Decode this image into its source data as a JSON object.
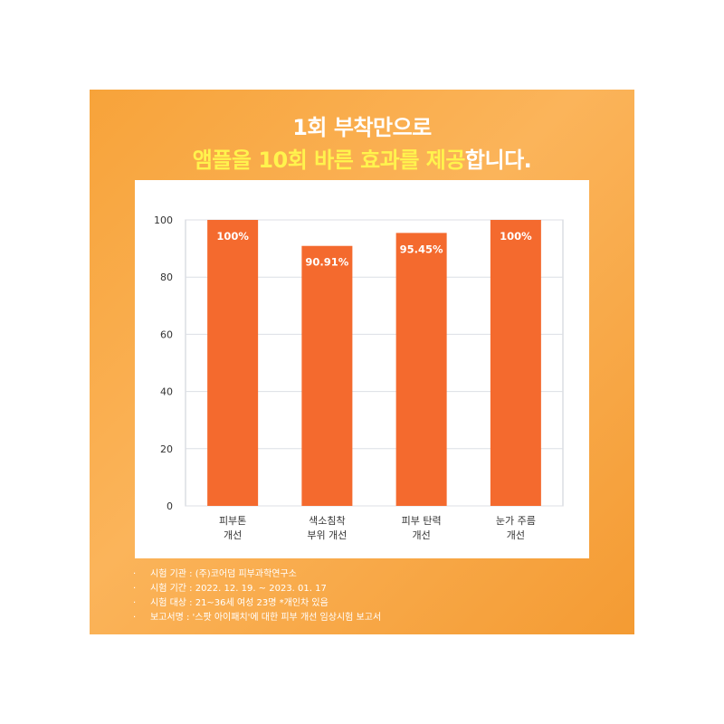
{
  "header": {
    "line1": "1회 부착만으로",
    "line2_highlight": "앰플을 10회 바른 효과를 제공",
    "line2_rest": "합니다."
  },
  "chart_data": {
    "type": "bar",
    "categories": [
      [
        "피부톤",
        "개선"
      ],
      [
        "색소침착",
        "부위 개선"
      ],
      [
        "피부 탄력",
        "개선"
      ],
      [
        "눈가 주름",
        "개선"
      ]
    ],
    "values": [
      100,
      90.91,
      95.45,
      100
    ],
    "data_labels": [
      "100%",
      "90.91%",
      "95.45%",
      "100%"
    ],
    "yticks": [
      0,
      20,
      40,
      60,
      80,
      100
    ],
    "ylim": [
      0,
      100
    ],
    "grid": true,
    "bar_color": "#f46a2e",
    "title": "",
    "xlabel": "",
    "ylabel": ""
  },
  "notes": [
    "시험 기관 : (주)코어덤 피부과학연구소",
    "시험 기간 : 2022. 12. 19. ~ 2023. 01. 17",
    "시험 대상 : 21~36세 여성 23명 *개인차 있음",
    "보고서명 : '스팟 아이패치'에 대한 피부 개선 임상시험 보고서"
  ],
  "colors": {
    "background_gradient_start": "#f7a33a",
    "background_gradient_end": "#f49b33",
    "headline": "#ffffff",
    "highlight": "#fff34d",
    "bar": "#f46a2e"
  }
}
